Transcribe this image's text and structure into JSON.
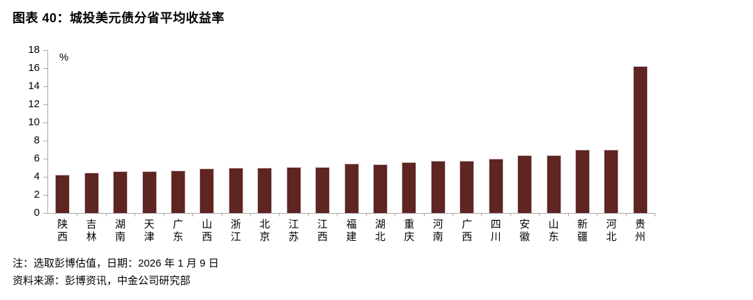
{
  "header": {
    "title": "图表 40：城投美元债分省平均收益率"
  },
  "footnotes": {
    "note": "注：选取彭博估值，日期：2026 年 1 月 9 日",
    "source": "资料来源：彭博资讯，中金公司研究部"
  },
  "chart_data": {
    "type": "bar",
    "title": "城投美元债分省平均收益率",
    "unit_label": "%",
    "categories": [
      "陕西",
      "吉林",
      "湖南",
      "天津",
      "广东",
      "山西",
      "浙江",
      "北京",
      "江苏",
      "江西",
      "福建",
      "湖北",
      "重庆",
      "河南",
      "广西",
      "四川",
      "安徽",
      "山东",
      "新疆",
      "河北",
      "贵州"
    ],
    "values": [
      4.2,
      4.5,
      4.6,
      4.6,
      4.7,
      4.9,
      5.0,
      5.0,
      5.1,
      5.1,
      5.5,
      5.4,
      5.6,
      5.8,
      5.8,
      6.0,
      6.4,
      6.4,
      7.0,
      7.0,
      16.2
    ],
    "xlabel": "",
    "ylabel": "%",
    "ylim": [
      0,
      18
    ],
    "ytick_step": 2,
    "grid": false,
    "legend_position": "none",
    "bar_color": "#5e2523",
    "bar_border_color": "#d8c6c6",
    "axis_color": "#a6a6a6",
    "text_color": "#000000"
  }
}
